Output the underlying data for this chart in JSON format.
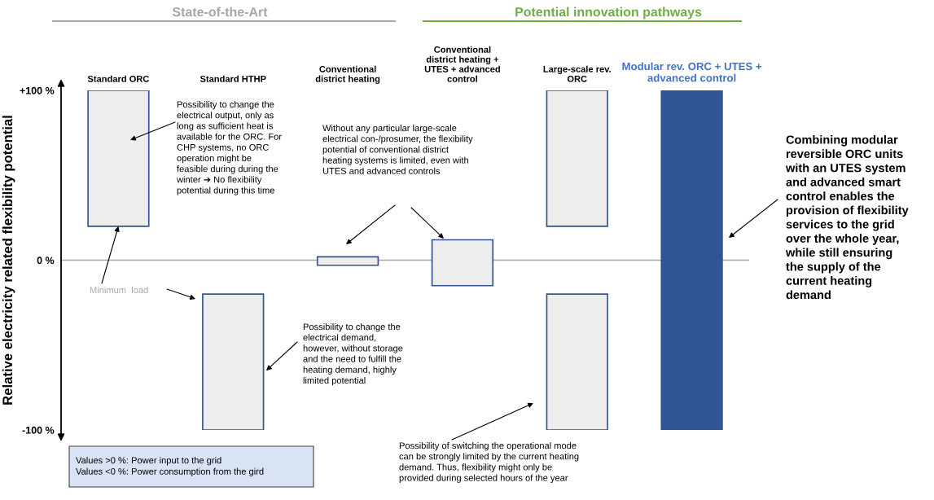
{
  "chart_data": {
    "type": "bar",
    "categories": [
      "Standard ORC",
      "Standard HTHP",
      "Conventional\ndistrict heating",
      "Conventional\ndistrict heating +\nUTES + advanced\ncontrol",
      "Large-scale rev.\nORC",
      "Modular rev. ORC + UTES +\nadvanced control"
    ],
    "series": [
      {
        "values": [
          80,
          80,
          5,
          27,
          80,
          200
        ],
        "base": [
          20,
          -100,
          -3,
          -15,
          20,
          -100
        ],
        "colors": [
          "#ededed",
          "#ededed",
          "#ededed",
          "#ededed",
          "#ededed",
          "#2f5597"
        ]
      },
      {
        "values": [
          null,
          null,
          null,
          null,
          80,
          null
        ],
        "base": [
          null,
          null,
          null,
          null,
          -100,
          null
        ],
        "colors": [
          "#ededed",
          "#ededed",
          "#ededed",
          "#ededed",
          "#ededed",
          "#ededed"
        ]
      }
    ],
    "ylabel": "Relative electricity related flexibility potential",
    "ylim": [
      -100,
      100
    ],
    "yticks": [
      {
        "value": 100,
        "label": "+100 %"
      },
      {
        "value": 0,
        "label": "0 %"
      },
      {
        "value": -100,
        "label": "-100 %"
      }
    ],
    "ref_lines": [
      {
        "axis": "y",
        "value": 0,
        "color": "#a6a6a6"
      }
    ],
    "annotations": [
      "State-of-the-Art",
      "Potential innovation pathways",
      "Possibility to change the\nelectrical output, only as\nlong as sufficient heat is\navailable for the ORC. For\nCHP systems, no ORC\noperation might be\nfeasible during during the\nwinter ➔ No flexibility\npotential during this time",
      "Without any particular large-scale\nelectrical con-/prosumer, the flexibility\npotential of conventional district\nheating systems is limited, even with\nUTES and advanced controls",
      {
        "text": "Minimum  load",
        "x": "Standard ORC",
        "y": 20
      },
      "Possibility to change the\nelectrical demand,\nhowever, without storage\nand the need to fulfill the\nheating demand, highly\nlimited potential",
      "Possibility of switching the operational mode\ncan be strongly limited by the current heating\ndemand. Thus, flexibility might only be\nprovided during selected hours of the year",
      "Combining modular\nreversible ORC units\nwith an UTES system\nand advanced smart\ncontrol enables the\nprovision of flexibility\nservices to the grid\nover the whole year,\nwhile still ensuring\nthe supply of the\ncurrent heating\ndemand",
      "Values >0 %: Power input to the grid\nValues <0 %: Power consumption from the gird"
    ]
  }
}
